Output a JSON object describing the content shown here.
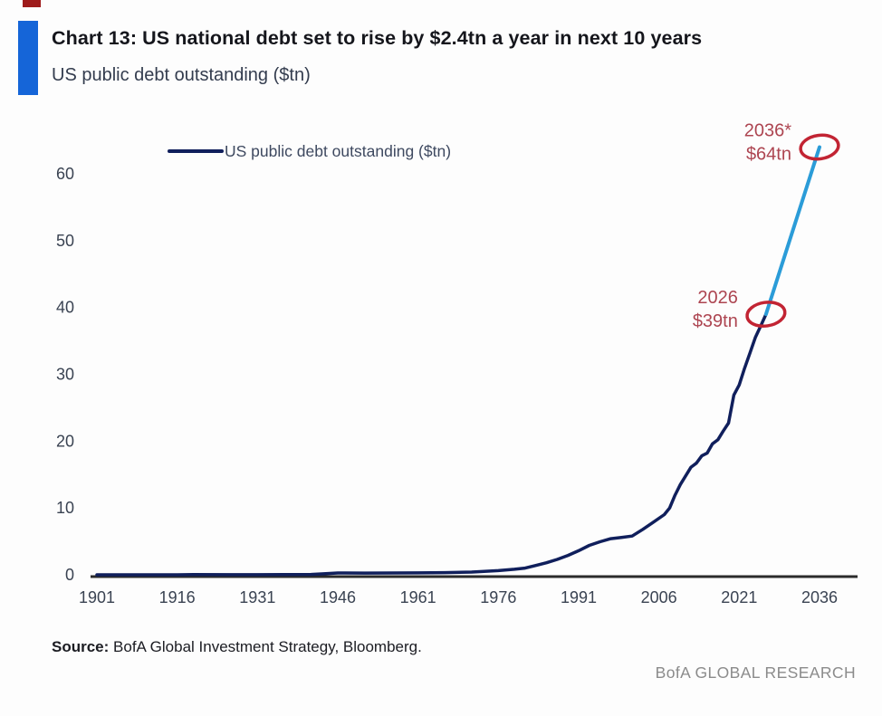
{
  "header": {
    "title": "Chart 13: US national debt set to rise by $2.4tn a year in next 10 years",
    "subtitle": "US public debt outstanding ($tn)",
    "accent_color": "#1565d8",
    "fragment_color": "#9e1b1b"
  },
  "chart_data": {
    "type": "line",
    "title": "US public debt outstanding ($tn)",
    "xlabel": "",
    "ylabel": "",
    "xlim": [
      1901,
      2036
    ],
    "ylim": [
      0,
      64
    ],
    "grid": false,
    "legend_position": "top-left-inside",
    "x_ticks": [
      1901,
      1916,
      1931,
      1946,
      1961,
      1976,
      1991,
      2006,
      2021,
      2036
    ],
    "y_ticks": [
      0,
      10,
      20,
      30,
      40,
      50,
      60
    ],
    "legend": [
      {
        "label": "US public debt outstanding ($tn)",
        "color": "#101f5c"
      }
    ],
    "series": [
      {
        "name": "US public debt outstanding historical",
        "color": "#101f5c",
        "width": 3.5,
        "points": [
          [
            1901,
            0.0
          ],
          [
            1910,
            0.0
          ],
          [
            1916,
            0.0
          ],
          [
            1919,
            0.03
          ],
          [
            1931,
            0.02
          ],
          [
            1941,
            0.05
          ],
          [
            1943,
            0.14
          ],
          [
            1946,
            0.27
          ],
          [
            1951,
            0.26
          ],
          [
            1956,
            0.27
          ],
          [
            1961,
            0.29
          ],
          [
            1966,
            0.32
          ],
          [
            1971,
            0.4
          ],
          [
            1976,
            0.62
          ],
          [
            1979,
            0.83
          ],
          [
            1981,
            1.0
          ],
          [
            1983,
            1.4
          ],
          [
            1985,
            1.8
          ],
          [
            1987,
            2.3
          ],
          [
            1989,
            2.9
          ],
          [
            1991,
            3.6
          ],
          [
            1993,
            4.4
          ],
          [
            1995,
            4.95
          ],
          [
            1997,
            5.4
          ],
          [
            1999,
            5.6
          ],
          [
            2001,
            5.8
          ],
          [
            2003,
            6.8
          ],
          [
            2005,
            7.9
          ],
          [
            2007,
            9.0
          ],
          [
            2008,
            10.0
          ],
          [
            2009,
            11.9
          ],
          [
            2010,
            13.5
          ],
          [
            2011,
            14.8
          ],
          [
            2012,
            16.1
          ],
          [
            2013,
            16.7
          ],
          [
            2014,
            17.8
          ],
          [
            2015,
            18.2
          ],
          [
            2016,
            19.6
          ],
          [
            2017,
            20.2
          ],
          [
            2018,
            21.5
          ],
          [
            2019,
            22.7
          ],
          [
            2020,
            26.9
          ],
          [
            2021,
            28.4
          ],
          [
            2022,
            30.9
          ],
          [
            2023,
            33.2
          ],
          [
            2024,
            35.5
          ],
          [
            2025,
            37.2
          ],
          [
            2026,
            39.0
          ]
        ]
      },
      {
        "name": "US public debt outstanding projection",
        "color": "#2b9cd8",
        "width": 4,
        "points": [
          [
            2026,
            39.0
          ],
          [
            2036,
            64.0
          ]
        ]
      }
    ],
    "annotations": [
      {
        "lines": [
          "2026",
          "$39tn"
        ],
        "year": 2026,
        "value": 39,
        "text_color": "#ad4551",
        "circle_color": "#c22433",
        "label_side": "left"
      },
      {
        "lines": [
          "2036*",
          "$64tn"
        ],
        "year": 2036,
        "value": 64,
        "text_color": "#ad4551",
        "circle_color": "#c22433",
        "label_side": "left"
      }
    ],
    "axis_color": "#2b2b2b",
    "tick_label_color": "#3a4352",
    "legend_text_color": "#3e4960"
  },
  "footer": {
    "source_label": "Source:",
    "source_text": " BofA Global Investment Strategy, Bloomberg.",
    "brand": "BofA GLOBAL RESEARCH"
  }
}
